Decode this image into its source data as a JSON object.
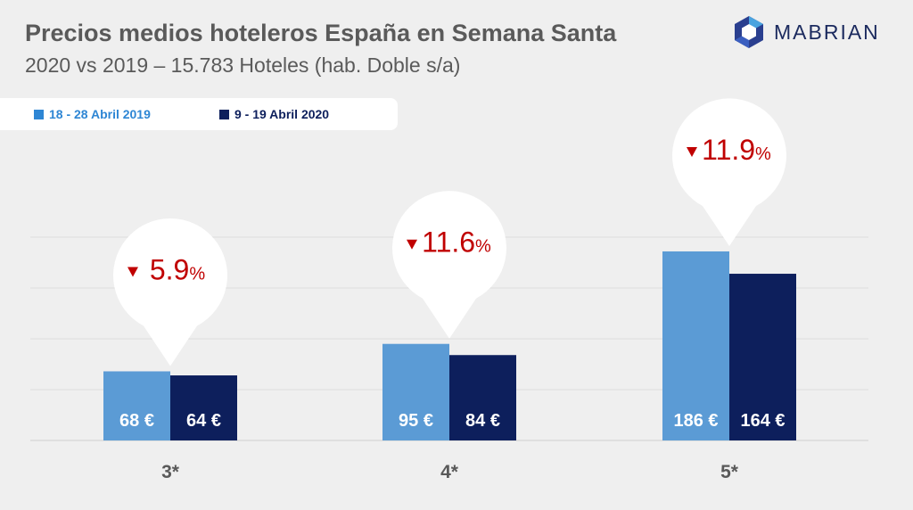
{
  "header": {
    "title": "Precios medios hoteleros España en Semana Santa",
    "subtitle": "2020 vs 2019 – 15.783 Hoteles (hab. Doble s/a)",
    "brand": "MABRIAN"
  },
  "colors": {
    "series_2019": "#5b9bd5",
    "series_2020": "#0d1f5c",
    "legend_2019_text": "#2e86d4",
    "decline": "#c00000",
    "axis_text": "#595959",
    "brand": "#1b2a5e"
  },
  "icons": {
    "brand_logo": "hexagon-logo-icon",
    "decline_marker": "triangle-down-icon"
  },
  "chart_data": {
    "type": "bar",
    "categories": [
      "3*",
      "4*",
      "5*"
    ],
    "series": [
      {
        "name": "18 - 28 Abril 2019",
        "values": [
          68,
          95,
          186
        ],
        "labels": [
          "68 €",
          "95 €",
          "186 €"
        ]
      },
      {
        "name": "9 - 19 Abril 2020",
        "values": [
          64,
          84,
          164
        ],
        "labels": [
          "64 €",
          "84 €",
          "164 €"
        ]
      }
    ],
    "annotations": [
      {
        "category": "3*",
        "value": "5.9",
        "unit": "%"
      },
      {
        "category": "4*",
        "value": "11.6",
        "unit": "%"
      },
      {
        "category": "5*",
        "value": "11.9",
        "unit": "%"
      }
    ],
    "title": "Precios medios hoteleros España en Semana Santa",
    "xlabel": "",
    "ylabel": "",
    "ylim": [
      0,
      200
    ],
    "grid": true,
    "legend": "top-left"
  }
}
